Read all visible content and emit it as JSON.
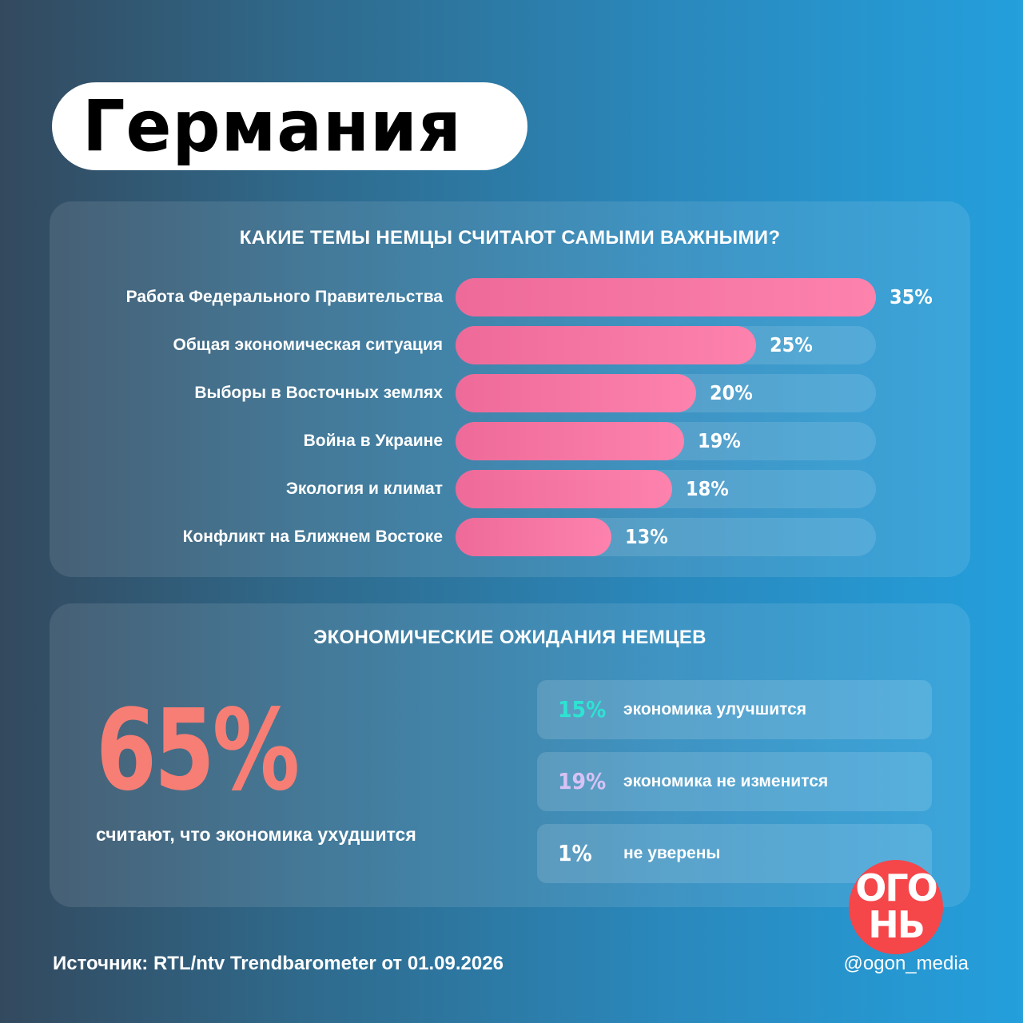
{
  "title": "Германия",
  "topics": {
    "heading": "КАКИЕ ТЕМЫ НЕМЦЫ СЧИТАЮТ САМЫМИ ВАЖНЫМИ?"
  },
  "expectations": {
    "heading": "ЭКОНОМИЧЕСКИЕ ОЖИДАНИЯ НЕМЦЕВ",
    "big_value": "65%",
    "big_caption": "считают, что экономика ухудшится",
    "options": [
      {
        "value": "15%",
        "label": "экономика улучшится",
        "color": "#2de3d2"
      },
      {
        "value": "19%",
        "label": "экономика не изменится",
        "color": "#d8c2f5"
      },
      {
        "value": "1%",
        "label": "не уверены",
        "color": "#ffffff"
      }
    ]
  },
  "footer": {
    "source": "Источник: RTL/ntv Trendbarometer от 01.09.2026",
    "handle": "@ogon_media"
  },
  "logo": {
    "text_top": "ОГО",
    "text_bottom": "НЬ",
    "color": "#f5464a"
  },
  "colors": {
    "bar_start": "#ee6a99",
    "bar_end": "#fd82ad",
    "big_value": "#f77e74"
  },
  "chart_data": {
    "type": "bar",
    "orientation": "horizontal",
    "title": "КАКИЕ ТЕМЫ НЕМЦЫ СЧИТАЮТ САМЫМИ ВАЖНЫМИ?",
    "categories": [
      "Работа Федерального Правительства",
      "Общая экономическая ситуация",
      "Выборы в Восточных землях",
      "Война в Украине",
      "Экология и климат",
      "Конфликт на Ближнем Востоке"
    ],
    "values": [
      35,
      25,
      20,
      19,
      18,
      13
    ],
    "value_labels": [
      "35%",
      "25%",
      "20%",
      "19%",
      "18%",
      "13%"
    ],
    "unit": "%",
    "xlim": [
      0,
      35
    ],
    "grid": false
  }
}
